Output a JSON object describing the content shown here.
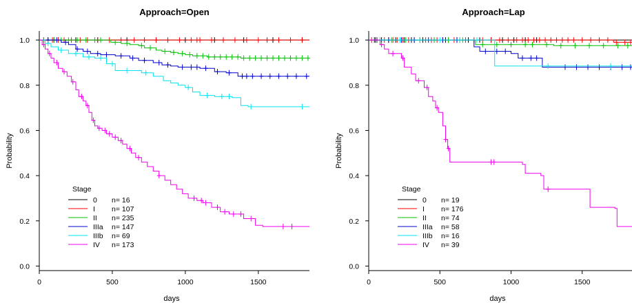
{
  "chart_data": [
    {
      "type": "line",
      "title": "Approach=Open",
      "xlabel": "days",
      "ylabel": "Probability",
      "xlim": [
        0,
        1850
      ],
      "ylim": [
        -0.02,
        1.04
      ],
      "xticks": [
        0,
        500,
        1000,
        1500
      ],
      "yticks": [
        0.0,
        0.2,
        0.4,
        0.6,
        0.8,
        1.0
      ],
      "legend_title": "Stage",
      "legend_placement": "bottom-left",
      "series": [
        {
          "name": "0",
          "n_label": "n= 16",
          "color": "#000000",
          "points": [
            [
              0,
              1.0
            ],
            [
              1850,
              1.0
            ]
          ],
          "censor": [
            100,
            250,
            400,
            600,
            800,
            1000,
            1200,
            1400,
            1600,
            1800
          ]
        },
        {
          "name": "I",
          "n_label": "n= 107",
          "color": "#ff0000",
          "points": [
            [
              0,
              1.0
            ],
            [
              1850,
              1.0
            ]
          ],
          "censor": [
            30,
            60,
            90,
            130,
            170,
            220,
            280,
            330,
            400,
            480,
            560,
            650,
            720,
            800,
            880,
            960,
            1040,
            1080,
            1100,
            1180,
            1260,
            1340,
            1420,
            1500,
            1560,
            1640,
            1720,
            1800
          ]
        },
        {
          "name": "II",
          "n_label": "n= 235",
          "color": "#00c000",
          "points": [
            [
              0,
              1.0
            ],
            [
              480,
              1.0
            ],
            [
              490,
              0.99
            ],
            [
              560,
              0.985
            ],
            [
              620,
              0.98
            ],
            [
              680,
              0.975
            ],
            [
              720,
              0.965
            ],
            [
              800,
              0.955
            ],
            [
              840,
              0.95
            ],
            [
              900,
              0.945
            ],
            [
              950,
              0.94
            ],
            [
              1000,
              0.935
            ],
            [
              1050,
              0.93
            ],
            [
              1150,
              0.925
            ],
            [
              1300,
              0.925
            ],
            [
              1380,
              0.92
            ],
            [
              1850,
              0.92
            ]
          ],
          "censor": [
            30,
            60,
            100,
            150,
            200,
            260,
            320,
            380,
            420,
            520,
            600,
            700,
            760,
            860,
            920,
            980,
            1030,
            1080,
            1120,
            1160,
            1200,
            1240,
            1280,
            1320,
            1360,
            1400,
            1440,
            1480,
            1520,
            1560,
            1600,
            1640,
            1680,
            1720,
            1760,
            1800,
            1840
          ]
        },
        {
          "name": "IIIa",
          "n_label": "n= 147",
          "color": "#0000cd",
          "points": [
            [
              0,
              1.0
            ],
            [
              150,
              0.99
            ],
            [
              200,
              0.98
            ],
            [
              250,
              0.96
            ],
            [
              300,
              0.95
            ],
            [
              350,
              0.94
            ],
            [
              420,
              0.935
            ],
            [
              520,
              0.93
            ],
            [
              620,
              0.92
            ],
            [
              680,
              0.91
            ],
            [
              780,
              0.9
            ],
            [
              840,
              0.89
            ],
            [
              900,
              0.885
            ],
            [
              950,
              0.88
            ],
            [
              1100,
              0.875
            ],
            [
              1200,
              0.86
            ],
            [
              1280,
              0.855
            ],
            [
              1360,
              0.84
            ],
            [
              1850,
              0.84
            ]
          ],
          "censor": [
            60,
            120,
            180,
            260,
            330,
            400,
            460,
            560,
            640,
            720,
            820,
            880,
            980,
            1040,
            1080,
            1140,
            1220,
            1300,
            1390,
            1420,
            1460,
            1520,
            1580,
            1640,
            1700,
            1760,
            1830
          ]
        },
        {
          "name": "IIIb",
          "n_label": "n= 69",
          "color": "#00e5ee",
          "points": [
            [
              0,
              1.0
            ],
            [
              40,
              0.985
            ],
            [
              80,
              0.97
            ],
            [
              130,
              0.955
            ],
            [
              200,
              0.94
            ],
            [
              300,
              0.925
            ],
            [
              380,
              0.92
            ],
            [
              460,
              0.895
            ],
            [
              520,
              0.865
            ],
            [
              700,
              0.855
            ],
            [
              780,
              0.84
            ],
            [
              850,
              0.82
            ],
            [
              900,
              0.81
            ],
            [
              950,
              0.8
            ],
            [
              1000,
              0.79
            ],
            [
              1050,
              0.77
            ],
            [
              1100,
              0.755
            ],
            [
              1200,
              0.75
            ],
            [
              1320,
              0.745
            ],
            [
              1380,
              0.71
            ],
            [
              1430,
              0.705
            ],
            [
              1850,
              0.705
            ]
          ],
          "censor": [
            60,
            150,
            250,
            340,
            420,
            500,
            600,
            730,
            1020,
            1150,
            1250,
            1300,
            1450,
            1800
          ]
        },
        {
          "name": "IV",
          "n_label": "n= 173",
          "color": "#ee00ee",
          "points": [
            [
              0,
              1.0
            ],
            [
              20,
              0.98
            ],
            [
              40,
              0.96
            ],
            [
              60,
              0.94
            ],
            [
              80,
              0.92
            ],
            [
              100,
              0.9
            ],
            [
              130,
              0.875
            ],
            [
              160,
              0.86
            ],
            [
              190,
              0.84
            ],
            [
              220,
              0.815
            ],
            [
              250,
              0.78
            ],
            [
              270,
              0.75
            ],
            [
              300,
              0.73
            ],
            [
              320,
              0.71
            ],
            [
              340,
              0.68
            ],
            [
              360,
              0.645
            ],
            [
              380,
              0.62
            ],
            [
              400,
              0.61
            ],
            [
              430,
              0.6
            ],
            [
              460,
              0.585
            ],
            [
              500,
              0.57
            ],
            [
              540,
              0.555
            ],
            [
              570,
              0.54
            ],
            [
              600,
              0.52
            ],
            [
              630,
              0.5
            ],
            [
              660,
              0.48
            ],
            [
              700,
              0.46
            ],
            [
              740,
              0.44
            ],
            [
              780,
              0.42
            ],
            [
              820,
              0.4
            ],
            [
              860,
              0.38
            ],
            [
              900,
              0.36
            ],
            [
              940,
              0.34
            ],
            [
              980,
              0.32
            ],
            [
              1020,
              0.3
            ],
            [
              1080,
              0.29
            ],
            [
              1120,
              0.28
            ],
            [
              1180,
              0.26
            ],
            [
              1240,
              0.24
            ],
            [
              1300,
              0.23
            ],
            [
              1400,
              0.21
            ],
            [
              1480,
              0.18
            ],
            [
              1530,
              0.175
            ],
            [
              1850,
              0.175
            ]
          ],
          "censor": [
            30,
            70,
            120,
            170,
            230,
            290,
            330,
            370,
            410,
            450,
            480,
            520,
            560,
            620,
            680,
            820,
            1060,
            1110,
            1140,
            1220,
            1270,
            1330,
            1380,
            1450,
            1670,
            1730
          ]
        }
      ]
    },
    {
      "type": "line",
      "title": "Approach=Lap",
      "xlabel": "days",
      "ylabel": "Probability",
      "xlim": [
        0,
        1850
      ],
      "ylim": [
        -0.02,
        1.04
      ],
      "xticks": [
        0,
        500,
        1000,
        1500
      ],
      "yticks": [
        0.0,
        0.2,
        0.4,
        0.6,
        0.8,
        1.0
      ],
      "legend_title": "Stage",
      "legend_placement": "bottom-left",
      "series": [
        {
          "name": "0",
          "n_label": "n= 19",
          "color": "#000000",
          "points": [
            [
              0,
              1.0
            ],
            [
              1850,
              1.0
            ]
          ],
          "censor": [
            40,
            90,
            140,
            190,
            250,
            300,
            380,
            460,
            540,
            620,
            700,
            780,
            860,
            940,
            1020,
            1100,
            1180
          ]
        },
        {
          "name": "I",
          "n_label": "n= 176",
          "color": "#ff0000",
          "points": [
            [
              0,
              1.0
            ],
            [
              1700,
              1.0
            ],
            [
              1720,
              0.99
            ],
            [
              1850,
              0.99
            ]
          ],
          "censor": [
            20,
            50,
            80,
            110,
            140,
            170,
            200,
            240,
            280,
            320,
            360,
            400,
            440,
            480,
            520,
            560,
            600,
            640,
            680,
            740,
            800,
            860,
            920,
            980,
            1040,
            1080,
            1120,
            1160,
            1200,
            1240,
            1280,
            1320,
            1360,
            1400,
            1440,
            1500,
            1560,
            1620,
            1680,
            1740,
            1800,
            1840
          ]
        },
        {
          "name": "II",
          "n_label": "n= 74",
          "color": "#00c000",
          "points": [
            [
              0,
              1.0
            ],
            [
              740,
              1.0
            ],
            [
              750,
              0.98
            ],
            [
              1200,
              0.98
            ],
            [
              1300,
              0.975
            ],
            [
              1850,
              0.975
            ]
          ],
          "censor": [
            60,
            160,
            260,
            360,
            460,
            560,
            660,
            800,
            900,
            1000,
            1100,
            1150,
            1250,
            1350,
            1450,
            1550,
            1650,
            1750,
            1820
          ]
        },
        {
          "name": "IIIa",
          "n_label": "n= 58",
          "color": "#0000cd",
          "points": [
            [
              0,
              1.0
            ],
            [
              730,
              1.0
            ],
            [
              740,
              0.97
            ],
            [
              780,
              0.95
            ],
            [
              1000,
              0.94
            ],
            [
              1050,
              0.92
            ],
            [
              1220,
              0.88
            ],
            [
              1850,
              0.88
            ]
          ],
          "censor": [
            50,
            140,
            230,
            320,
            420,
            520,
            620,
            820,
            900,
            960,
            1080,
            1140,
            1180,
            1380,
            1460,
            1540,
            1620,
            1700,
            1780,
            1840
          ]
        },
        {
          "name": "IIIb",
          "n_label": "n= 16",
          "color": "#00e5ee",
          "points": [
            [
              0,
              1.0
            ],
            [
              880,
              1.0
            ],
            [
              885,
              0.885
            ],
            [
              1850,
              0.885
            ]
          ],
          "censor": [
            80,
            220,
            360,
            500,
            640,
            760,
            1260,
            1700
          ]
        },
        {
          "name": "IV",
          "n_label": "n= 39",
          "color": "#ee00ee",
          "points": [
            [
              0,
              1.0
            ],
            [
              80,
              0.98
            ],
            [
              110,
              0.96
            ],
            [
              140,
              0.94
            ],
            [
              230,
              0.92
            ],
            [
              250,
              0.88
            ],
            [
              300,
              0.85
            ],
            [
              330,
              0.82
            ],
            [
              390,
              0.79
            ],
            [
              420,
              0.75
            ],
            [
              450,
              0.73
            ],
            [
              470,
              0.7
            ],
            [
              490,
              0.68
            ],
            [
              520,
              0.62
            ],
            [
              540,
              0.56
            ],
            [
              555,
              0.52
            ],
            [
              570,
              0.46
            ],
            [
              1080,
              0.45
            ],
            [
              1100,
              0.41
            ],
            [
              1210,
              0.4
            ],
            [
              1230,
              0.34
            ],
            [
              1540,
              0.34
            ],
            [
              1555,
              0.26
            ],
            [
              1730,
              0.255
            ],
            [
              1745,
              0.175
            ],
            [
              1850,
              0.175
            ]
          ],
          "censor": [
            90,
            170,
            240,
            350,
            410,
            480,
            540,
            560,
            860,
            880,
            1260
          ]
        }
      ]
    }
  ]
}
